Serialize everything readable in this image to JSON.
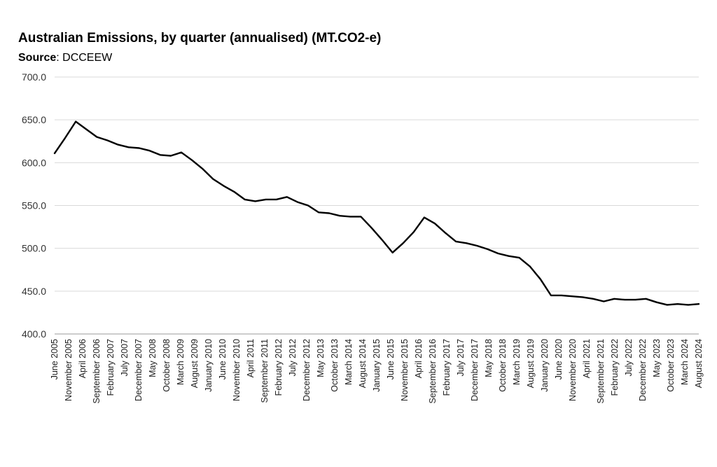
{
  "chart_data": {
    "type": "line",
    "title": "Australian Emissions, by quarter (annualised) (MT.CO2-e)",
    "source_label": "Source",
    "source_value": ": DCCEEW",
    "ylim": [
      400,
      700
    ],
    "yticks": [
      "400.0",
      "450.0",
      "500.0",
      "550.0",
      "600.0",
      "650.0",
      "700.0"
    ],
    "grid": true,
    "xtick_labels": [
      "June 2005",
      "November 2005",
      "April 2006",
      "September 2006",
      "February 2007",
      "July 2007",
      "December 2007",
      "May 2008",
      "October 2008",
      "March 2009",
      "August 2009",
      "January 2010",
      "June 2010",
      "November 2010",
      "April 2011",
      "September 2011",
      "February 2012",
      "July 2012",
      "December 2012",
      "May 2013",
      "October 2013",
      "March 2014",
      "August 2014",
      "January 2015",
      "June 2015",
      "November 2015",
      "April 2016",
      "September 2016",
      "February 2017",
      "July 2017",
      "December 2017",
      "May 2018",
      "October 2018",
      "March 2019",
      "August 2019",
      "January 2020",
      "June 2020",
      "November 2020",
      "April 2021",
      "September 2021",
      "February 2022",
      "July 2022",
      "December 2022",
      "May 2023",
      "October 2023",
      "March 2024",
      "August 2024"
    ],
    "series": [
      {
        "values": [
          611,
          629,
          648,
          639,
          630,
          626,
          621,
          618,
          617,
          614,
          609,
          608,
          612,
          603,
          593,
          581,
          573,
          566,
          557,
          555,
          557,
          557,
          560,
          554,
          550,
          542,
          541,
          538,
          537,
          537,
          524,
          510,
          495,
          506,
          519,
          536,
          529,
          518,
          508,
          506,
          503,
          499,
          494,
          491,
          489,
          479,
          464,
          445,
          445,
          444,
          443,
          441,
          438,
          441,
          440,
          440,
          441,
          437,
          434,
          435,
          434,
          435
        ],
        "color": "#000000"
      }
    ]
  }
}
